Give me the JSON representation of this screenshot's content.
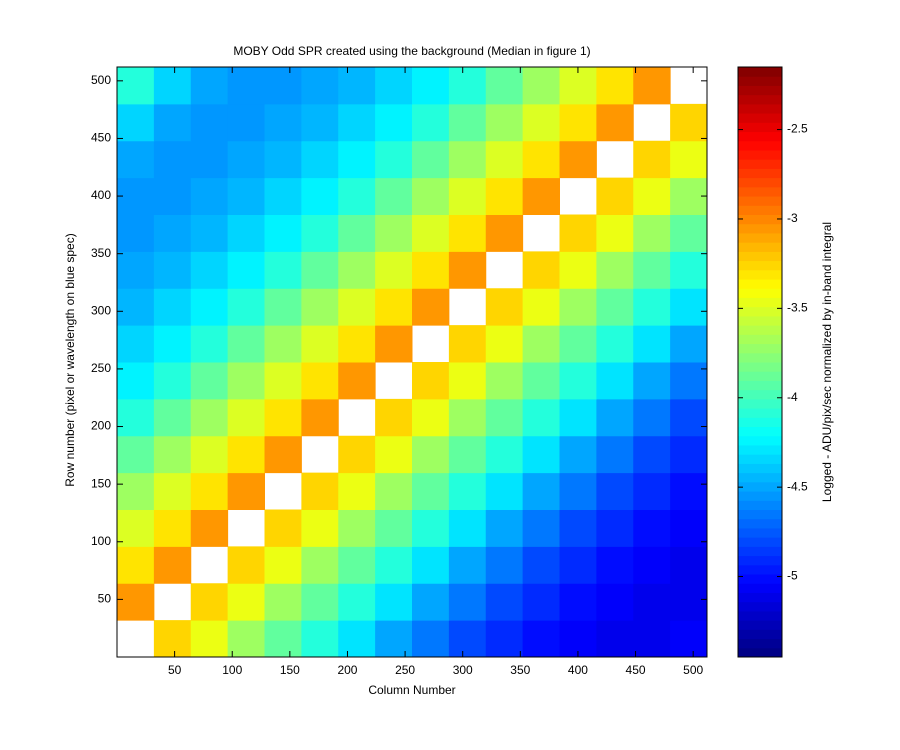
{
  "chart_data": {
    "type": "heatmap",
    "title": "MOBY Odd SPR created using the background (Median in figure 1)",
    "xlabel": "Column Number",
    "ylabel": "Row number (pixel or wavelength on blue spec)",
    "colorbar_label": "Logged - ADU/pix/sec normalized by in-band integral",
    "colormap": "jet",
    "x": [
      16,
      48,
      80,
      112,
      144,
      176,
      208,
      240,
      272,
      304,
      336,
      368,
      400,
      432,
      464,
      496
    ],
    "y": [
      16,
      48,
      80,
      112,
      144,
      176,
      208,
      240,
      272,
      304,
      336,
      368,
      400,
      432,
      464,
      496
    ],
    "values": [
      [
        null,
        -3.25,
        -3.45,
        -3.7,
        -3.9,
        -4.1,
        -4.3,
        -4.5,
        -4.65,
        -4.8,
        -4.9,
        -5.0,
        -5.05,
        -5.1,
        -5.1,
        -5.05
      ],
      [
        -3.05,
        null,
        -3.25,
        -3.45,
        -3.7,
        -3.9,
        -4.1,
        -4.3,
        -4.5,
        -4.65,
        -4.8,
        -4.9,
        -5.0,
        -5.05,
        -5.1,
        -5.1
      ],
      [
        -3.3,
        -3.05,
        null,
        -3.25,
        -3.45,
        -3.7,
        -3.9,
        -4.1,
        -4.3,
        -4.5,
        -4.65,
        -4.8,
        -4.9,
        -5.0,
        -5.05,
        -5.1
      ],
      [
        -3.5,
        -3.3,
        -3.05,
        null,
        -3.25,
        -3.45,
        -3.7,
        -3.9,
        -4.1,
        -4.3,
        -4.5,
        -4.65,
        -4.8,
        -4.9,
        -5.0,
        -5.05
      ],
      [
        -3.7,
        -3.5,
        -3.3,
        -3.05,
        null,
        -3.25,
        -3.45,
        -3.7,
        -3.9,
        -4.1,
        -4.3,
        -4.5,
        -4.65,
        -4.8,
        -4.9,
        -5.0
      ],
      [
        -3.9,
        -3.7,
        -3.5,
        -3.3,
        -3.05,
        null,
        -3.25,
        -3.45,
        -3.7,
        -3.9,
        -4.1,
        -4.3,
        -4.5,
        -4.65,
        -4.8,
        -4.9
      ],
      [
        -4.1,
        -3.9,
        -3.7,
        -3.5,
        -3.3,
        -3.05,
        null,
        -3.25,
        -3.45,
        -3.7,
        -3.9,
        -4.1,
        -4.3,
        -4.5,
        -4.65,
        -4.8
      ],
      [
        -4.25,
        -4.1,
        -3.9,
        -3.7,
        -3.5,
        -3.3,
        -3.05,
        null,
        -3.25,
        -3.45,
        -3.7,
        -3.9,
        -4.1,
        -4.3,
        -4.5,
        -4.65
      ],
      [
        -4.35,
        -4.25,
        -4.1,
        -3.9,
        -3.7,
        -3.5,
        -3.3,
        -3.05,
        null,
        -3.25,
        -3.45,
        -3.7,
        -3.9,
        -4.1,
        -4.3,
        -4.5
      ],
      [
        -4.45,
        -4.35,
        -4.25,
        -4.1,
        -3.9,
        -3.7,
        -3.5,
        -3.3,
        -3.05,
        null,
        -3.25,
        -3.45,
        -3.7,
        -3.9,
        -4.1,
        -4.3
      ],
      [
        -4.5,
        -4.45,
        -4.35,
        -4.25,
        -4.1,
        -3.9,
        -3.7,
        -3.5,
        -3.3,
        -3.05,
        null,
        -3.25,
        -3.45,
        -3.7,
        -3.9,
        -4.1
      ],
      [
        -4.55,
        -4.5,
        -4.45,
        -4.35,
        -4.25,
        -4.1,
        -3.9,
        -3.7,
        -3.5,
        -3.3,
        -3.05,
        null,
        -3.25,
        -3.45,
        -3.7,
        -3.9
      ],
      [
        -4.55,
        -4.55,
        -4.5,
        -4.45,
        -4.35,
        -4.25,
        -4.1,
        -3.9,
        -3.7,
        -3.5,
        -3.3,
        -3.05,
        null,
        -3.25,
        -3.45,
        -3.7
      ],
      [
        -4.5,
        -4.55,
        -4.55,
        -4.5,
        -4.45,
        -4.35,
        -4.25,
        -4.1,
        -3.9,
        -3.7,
        -3.5,
        -3.3,
        -3.05,
        null,
        -3.25,
        -3.45
      ],
      [
        -4.35,
        -4.5,
        -4.55,
        -4.55,
        -4.5,
        -4.45,
        -4.35,
        -4.25,
        -4.1,
        -3.9,
        -3.7,
        -3.5,
        -3.3,
        -3.05,
        null,
        -3.25
      ],
      [
        -4.1,
        -4.35,
        -4.5,
        -4.55,
        -4.55,
        -4.5,
        -4.45,
        -4.35,
        -4.25,
        -4.1,
        -3.9,
        -3.7,
        -3.5,
        -3.3,
        -3.05,
        null
      ]
    ],
    "xlim": [
      0,
      512
    ],
    "ylim": [
      0,
      512
    ],
    "xticks": [
      50,
      100,
      150,
      200,
      250,
      300,
      350,
      400,
      450,
      500
    ],
    "yticks": [
      50,
      100,
      150,
      200,
      250,
      300,
      350,
      400,
      450,
      500
    ],
    "clim": [
      -5.45,
      -2.15
    ],
    "colorbar_ticks": [
      -5,
      -4.5,
      -4,
      -3.5,
      -3,
      -2.5
    ]
  }
}
